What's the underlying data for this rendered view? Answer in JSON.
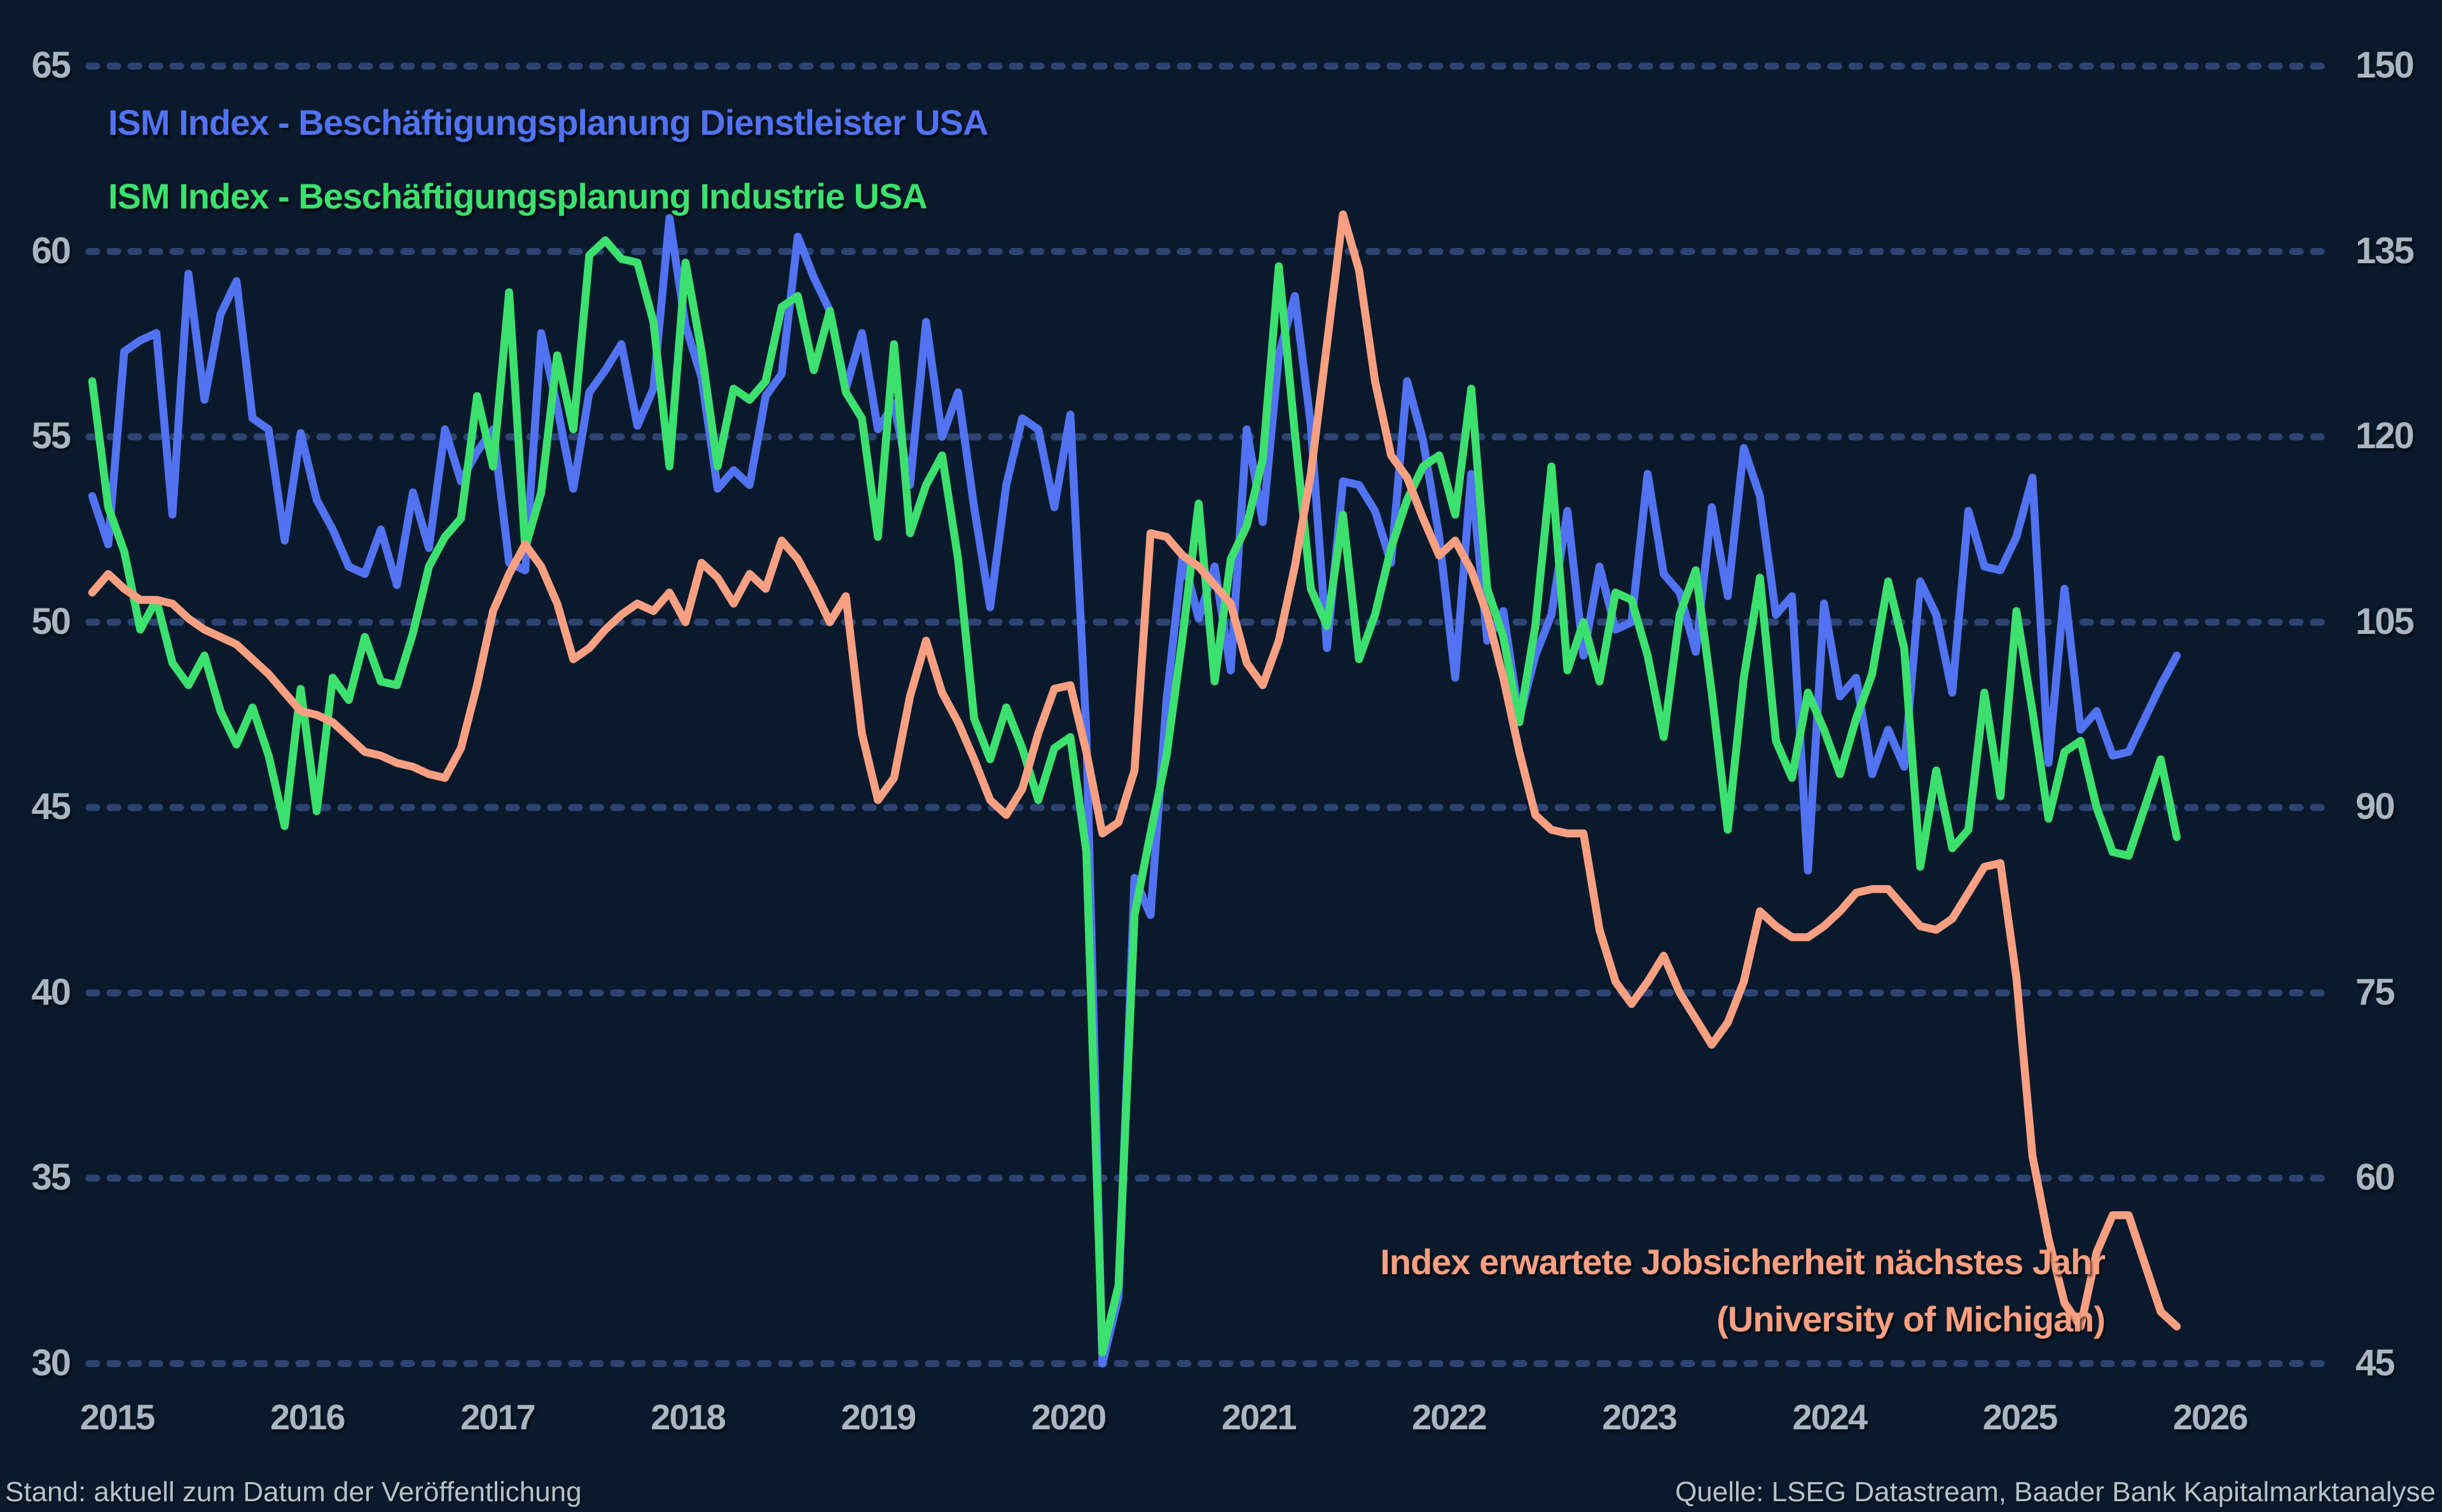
{
  "colors": {
    "background": "#0a1a2c",
    "grid_dots": "#2d4473",
    "axis_text": "#a9b5c0",
    "footer_text": "#b6c2cc",
    "services_blue": "#5173f1",
    "industry_green": "#3ce06e",
    "jobsecurity_salmon": "#f99f82"
  },
  "footer": {
    "left": "Stand: aktuell zum Datum der Veröffentlichung",
    "right": "Quelle: LSEG Datastream, Baader Bank Kapitalmarktanalyse"
  },
  "chart_data": {
    "type": "line",
    "x_start": "2015-01",
    "frequency": "monthly",
    "grid": "dotted-horizontal",
    "legend_position": "top-left-inside",
    "x_tick_years": [
      "2015",
      "2016",
      "2017",
      "2018",
      "2019",
      "2020",
      "2021",
      "2022",
      "2023",
      "2024",
      "2025",
      "2026"
    ],
    "left_axis": {
      "ticks": [
        65,
        60,
        55,
        50,
        45,
        40,
        35,
        30
      ],
      "range": [
        30,
        65
      ]
    },
    "right_axis": {
      "ticks": [
        150,
        135,
        120,
        105,
        90,
        75,
        60,
        45
      ],
      "range": [
        45,
        150
      ]
    },
    "annotation": {
      "line1": "Index erwartete Jobsicherheit nächstes Jahr",
      "line2": "(University of Michigan)"
    },
    "series": [
      {
        "name": "ISM Index - Beschäftigungsplanung Dienstleister USA",
        "axis": "left",
        "color": "#5173f1",
        "values": [
          53.4,
          52.1,
          57.3,
          57.6,
          57.8,
          52.9,
          59.4,
          56.0,
          58.3,
          59.2,
          55.5,
          55.2,
          52.2,
          55.1,
          53.3,
          52.5,
          51.5,
          51.3,
          52.5,
          51.0,
          53.5,
          52.0,
          55.2,
          53.8,
          54.6,
          55.2,
          51.6,
          51.4,
          57.8,
          55.8,
          53.6,
          56.2,
          56.8,
          57.5,
          55.3,
          56.3,
          60.9,
          58.0,
          56.6,
          53.6,
          54.1,
          53.7,
          56.1,
          56.7,
          60.4,
          59.3,
          58.4,
          56.3,
          57.8,
          55.2,
          55.9,
          53.7,
          58.1,
          55.0,
          56.2,
          53.1,
          50.4,
          53.7,
          55.5,
          55.2,
          53.1,
          55.6,
          47.0,
          30.0,
          31.8,
          43.1,
          42.1,
          47.9,
          51.8,
          50.1,
          51.5,
          48.7,
          55.2,
          52.7,
          57.2,
          58.8,
          55.3,
          49.3,
          53.8,
          53.7,
          53.0,
          51.6,
          56.5,
          54.9,
          52.3,
          48.5,
          54.0,
          49.5,
          50.3,
          47.4,
          49.1,
          50.2,
          53.0,
          49.1,
          51.5,
          49.8,
          50.0,
          54.0,
          51.3,
          50.8,
          49.2,
          53.1,
          50.7,
          54.7,
          53.4,
          50.2,
          50.7,
          43.3,
          50.5,
          48.0,
          48.5,
          45.9,
          47.1,
          46.1,
          51.1,
          50.2,
          48.1,
          53.0,
          51.5,
          51.4,
          52.3,
          53.9,
          46.2,
          50.9,
          47.1,
          47.6,
          46.4,
          46.5,
          47.4,
          48.3,
          49.1
        ]
      },
      {
        "name": "ISM Index - Beschäftigungsplanung Industrie USA",
        "axis": "left",
        "color": "#3ce06e",
        "values": [
          56.5,
          53.1,
          51.9,
          49.8,
          50.6,
          48.9,
          48.3,
          49.1,
          47.6,
          46.7,
          47.7,
          46.4,
          44.5,
          48.2,
          44.9,
          48.5,
          47.9,
          49.6,
          48.4,
          48.3,
          49.7,
          51.5,
          52.3,
          52.8,
          56.1,
          54.2,
          58.9,
          52.0,
          53.5,
          57.2,
          55.2,
          59.9,
          60.3,
          59.8,
          59.7,
          58.1,
          54.2,
          59.7,
          57.3,
          54.2,
          56.3,
          56.0,
          56.5,
          58.5,
          58.8,
          56.8,
          58.4,
          56.2,
          55.5,
          52.3,
          57.5,
          52.4,
          53.7,
          54.5,
          51.7,
          47.4,
          46.3,
          47.7,
          46.6,
          45.2,
          46.6,
          46.9,
          43.8,
          30.3,
          32.1,
          42.1,
          44.3,
          46.4,
          49.6,
          53.2,
          48.4,
          51.7,
          52.6,
          54.4,
          59.6,
          55.1,
          50.9,
          49.9,
          52.9,
          49.0,
          50.2,
          52.0,
          53.3,
          54.2,
          54.5,
          52.9,
          56.3,
          50.9,
          49.6,
          47.3,
          49.9,
          54.2,
          48.7,
          50.0,
          48.4,
          50.8,
          50.6,
          49.1,
          46.9,
          50.2,
          51.4,
          48.1,
          44.4,
          48.5,
          51.2,
          46.8,
          45.8,
          48.1,
          47.1,
          45.9,
          47.4,
          48.6,
          51.1,
          49.3,
          43.4,
          46.0,
          43.9,
          44.4,
          48.1,
          45.3,
          50.3,
          47.6,
          44.7,
          46.5,
          46.8,
          45.0,
          43.8,
          43.7,
          45.0,
          46.3,
          44.2
        ]
      },
      {
        "name": "Index erwartete Jobsicherheit nächstes Jahr (University of Michigan)",
        "axis": "right",
        "color": "#f99f82",
        "values": [
          107.4,
          108.9,
          107.7,
          106.8,
          106.8,
          106.5,
          105.3,
          104.4,
          103.8,
          103.2,
          102.0,
          100.8,
          99.3,
          97.8,
          97.5,
          96.9,
          95.7,
          94.5,
          94.2,
          93.6,
          93.3,
          92.7,
          92.4,
          94.8,
          99.9,
          105.9,
          108.9,
          111.3,
          109.5,
          106.5,
          102.0,
          102.9,
          104.4,
          105.6,
          106.5,
          105.9,
          107.4,
          105.0,
          109.8,
          108.6,
          106.5,
          108.9,
          107.7,
          111.6,
          110.1,
          107.7,
          105.0,
          107.1,
          96.0,
          90.6,
          92.4,
          99.0,
          103.5,
          99.3,
          96.9,
          93.9,
          90.6,
          89.4,
          91.5,
          96.0,
          99.6,
          99.9,
          94.5,
          87.9,
          88.8,
          93.0,
          112.2,
          111.9,
          110.4,
          109.5,
          108.0,
          106.5,
          101.7,
          99.9,
          103.5,
          109.5,
          117.0,
          127.5,
          138.0,
          133.5,
          124.5,
          118.5,
          116.7,
          113.4,
          110.4,
          111.6,
          109.2,
          105.6,
          100.5,
          94.5,
          89.4,
          88.2,
          87.9,
          87.9,
          80.1,
          75.9,
          74.1,
          75.9,
          78.0,
          75.0,
          72.9,
          70.8,
          72.6,
          75.9,
          81.6,
          80.4,
          79.5,
          79.5,
          80.4,
          81.6,
          83.1,
          83.4,
          83.4,
          81.9,
          80.4,
          80.1,
          81.0,
          83.1,
          85.2,
          85.5,
          76.2,
          61.8,
          55.1,
          49.9,
          48.0,
          54.0,
          57.0,
          57.0,
          53.1,
          49.2,
          48.0
        ]
      }
    ]
  }
}
